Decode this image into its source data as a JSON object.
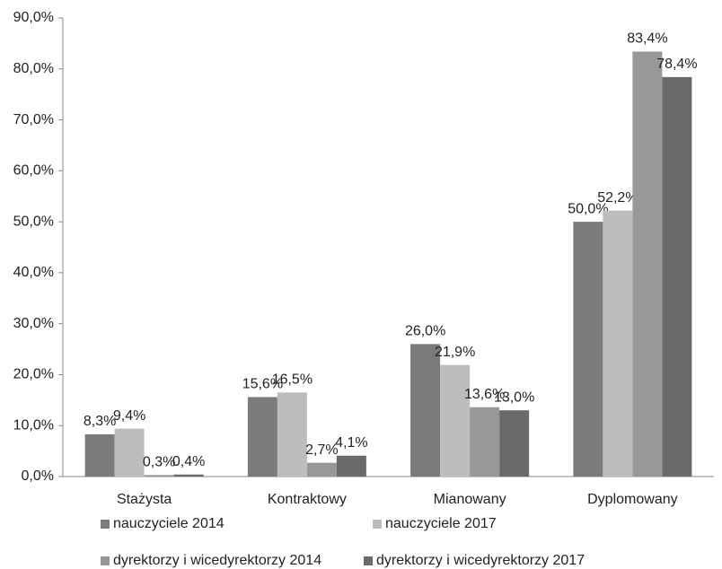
{
  "chart_data": {
    "type": "bar",
    "categories": [
      "Stażysta",
      "Kontraktowy",
      "Mianowany",
      "Dyplomowany"
    ],
    "series": [
      {
        "name": "nauczyciele 2014",
        "color": "#7b7b7b",
        "values": [
          8.3,
          15.6,
          26.0,
          50.0
        ],
        "value_labels": [
          "8,3%",
          "15,6%",
          "26,0%",
          "50,0%"
        ]
      },
      {
        "name": "nauczyciele 2017",
        "color": "#bdbdbd",
        "values": [
          9.4,
          16.5,
          21.9,
          52.2
        ],
        "value_labels": [
          "9,4%",
          "16,5%",
          "21,9%",
          "52,2%"
        ]
      },
      {
        "name": "dyrektorzy i wicedyrektorzy 2014",
        "color": "#989898",
        "values": [
          0.3,
          2.7,
          13.6,
          83.4
        ],
        "value_labels": [
          "0,3%",
          "2,7%",
          "13,6%",
          "83,4%"
        ]
      },
      {
        "name": "dyrektorzy i wicedyrektorzy 2017",
        "color": "#6a6a6a",
        "values": [
          0.4,
          4.1,
          13.0,
          78.4
        ],
        "value_labels": [
          "0,4%",
          "4,1%",
          "13,0%",
          "78,4%"
        ]
      }
    ],
    "ylim": [
      0,
      90
    ],
    "yticks": [
      {
        "value": 0,
        "label": "0,0%"
      },
      {
        "value": 10,
        "label": "10,0%"
      },
      {
        "value": 20,
        "label": "20,0%"
      },
      {
        "value": 30,
        "label": "30,0%"
      },
      {
        "value": 40,
        "label": "40,0%"
      },
      {
        "value": 50,
        "label": "50,0%"
      },
      {
        "value": 60,
        "label": "60,0%"
      },
      {
        "value": 70,
        "label": "70,0%"
      },
      {
        "value": 80,
        "label": "80,0%"
      },
      {
        "value": 90,
        "label": "90,0%"
      }
    ],
    "grid": false
  }
}
